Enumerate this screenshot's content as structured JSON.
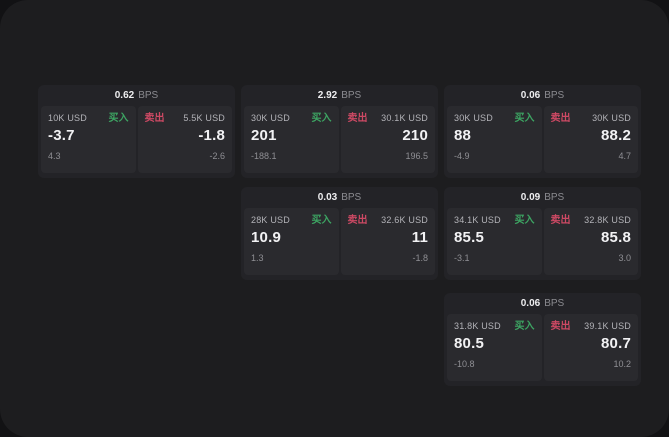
{
  "labels": {
    "buy": "买入",
    "sell": "卖出",
    "bps_unit": "BPS"
  },
  "colors": {
    "buy_green": "#3da563",
    "sell_red": "#cd4964",
    "panel_bg": "#1d1d1f",
    "card_bg": "#232327",
    "tile_bg": "#2a2a2e"
  },
  "cards": [
    {
      "col": 0,
      "row": 0,
      "bps": "0.62",
      "buy": {
        "notional": "10K USD",
        "value": "-3.7",
        "sub": "4.3"
      },
      "sell": {
        "notional": "5.5K USD",
        "value": "-1.8",
        "sub": "-2.6"
      }
    },
    {
      "col": 1,
      "row": 0,
      "bps": "2.92",
      "buy": {
        "notional": "30K USD",
        "value": "201",
        "sub": "-188.1"
      },
      "sell": {
        "notional": "30.1K USD",
        "value": "210",
        "sub": "196.5"
      }
    },
    {
      "col": 2,
      "row": 0,
      "bps": "0.06",
      "buy": {
        "notional": "30K USD",
        "value": "88",
        "sub": "-4.9"
      },
      "sell": {
        "notional": "30K USD",
        "value": "88.2",
        "sub": "4.7"
      }
    },
    {
      "col": 1,
      "row": 1,
      "bps": "0.03",
      "buy": {
        "notional": "28K USD",
        "value": "10.9",
        "sub": "1.3"
      },
      "sell": {
        "notional": "32.6K USD",
        "value": "11",
        "sub": "-1.8"
      }
    },
    {
      "col": 2,
      "row": 1,
      "bps": "0.09",
      "buy": {
        "notional": "34.1K USD",
        "value": "85.5",
        "sub": "-3.1"
      },
      "sell": {
        "notional": "32.8K USD",
        "value": "85.8",
        "sub": "3.0"
      }
    },
    {
      "col": 2,
      "row": 2,
      "bps": "0.06",
      "buy": {
        "notional": "31.8K USD",
        "value": "80.5",
        "sub": "-10.8"
      },
      "sell": {
        "notional": "39.1K USD",
        "value": "80.7",
        "sub": "10.2"
      }
    }
  ]
}
